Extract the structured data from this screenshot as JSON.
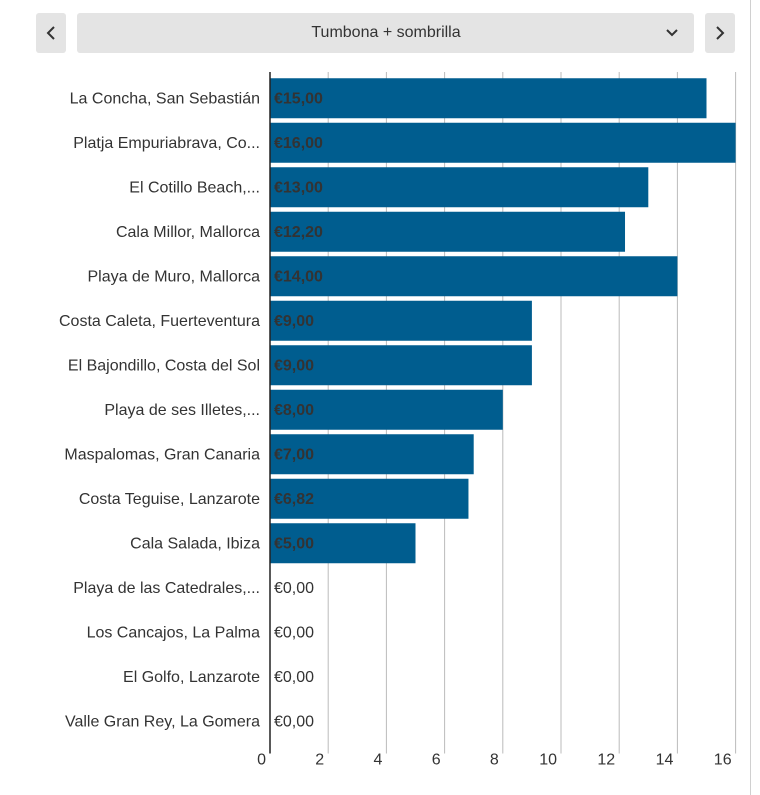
{
  "controls": {
    "dropdown": "Tumbona + sombrilla"
  },
  "chart_data": {
    "type": "bar",
    "orientation": "horizontal",
    "categories": [
      "La Concha, San Sebastián",
      "Platja Empuriabrava, Co...",
      "El Cotillo Beach,...",
      "Cala Millor, Mallorca",
      "Playa de Muro, Mallorca",
      "Costa Caleta, Fuerteventura",
      "El Bajondillo, Costa del Sol",
      "Playa de ses Illetes,...",
      "Maspalomas, Gran Canaria",
      "Costa Teguise, Lanzarote",
      "Cala Salada, Ibiza",
      "Playa de las Catedrales,...",
      "Los Cancajos, La Palma",
      "El Golfo, Lanzarote",
      "Valle Gran Rey, La Gomera"
    ],
    "values": [
      15,
      16,
      13,
      12.2,
      14,
      9,
      9,
      8,
      7,
      6.82,
      5,
      0,
      0,
      0,
      0
    ],
    "value_labels": [
      "€15,00",
      "€16,00",
      "€13,00",
      "€12,20",
      "€14,00",
      "€9,00",
      "€9,00",
      "€8,00",
      "€7,00",
      "€6,82",
      "€5,00",
      "€0,00",
      "€0,00",
      "€0,00",
      "€0,00"
    ],
    "color": "#005d8f",
    "xlim": [
      0,
      16
    ],
    "xticks": [
      0,
      2,
      4,
      6,
      8,
      10,
      12,
      14,
      16
    ],
    "grid": true
  }
}
